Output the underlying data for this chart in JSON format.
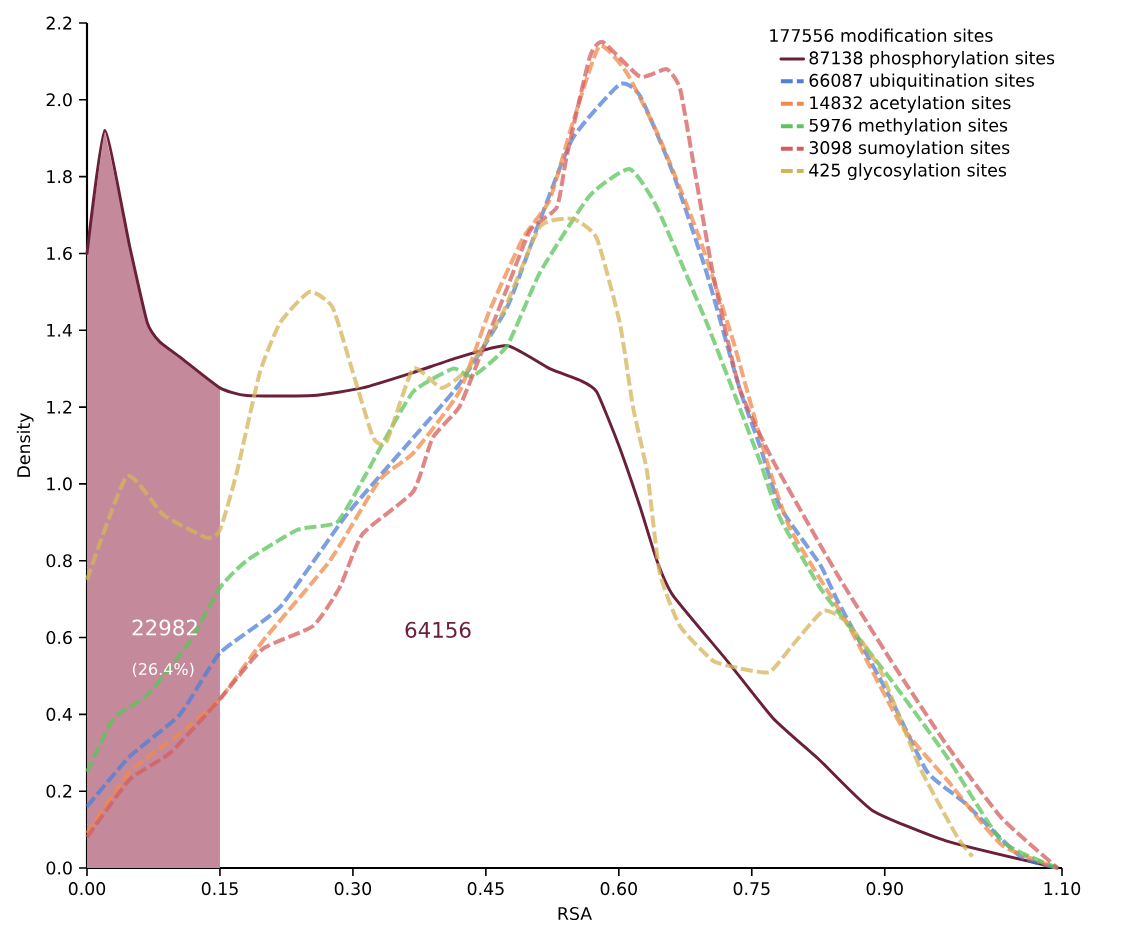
{
  "chart_data": {
    "type": "line",
    "xlabel": "RSA",
    "ylabel": "Density",
    "legend_title": "177556 modification sites",
    "legend": "top right",
    "xlim": [
      0,
      1.1
    ],
    "ylim": [
      0,
      2.2
    ],
    "xticks": [
      {
        "value": 0,
        "label": "0.00"
      },
      {
        "value": 0.15,
        "label": "0.15"
      },
      {
        "value": 0.3,
        "label": "0.30"
      },
      {
        "value": 0.45,
        "label": "0.45"
      },
      {
        "value": 0.6,
        "label": "0.60"
      },
      {
        "value": 0.75,
        "label": "0.75"
      },
      {
        "value": 0.9,
        "label": "0.90"
      },
      {
        "value": 1.1,
        "label": "1.10"
      }
    ],
    "yticks": [
      {
        "value": 0,
        "label": "0.0"
      },
      {
        "value": 0.2,
        "label": "0.2"
      },
      {
        "value": 0.4,
        "label": "0.4"
      },
      {
        "value": 0.6,
        "label": "0.6"
      },
      {
        "value": 0.8,
        "label": "0.8"
      },
      {
        "value": 1.0,
        "label": "1.0"
      },
      {
        "value": 1.2,
        "label": "1.2"
      },
      {
        "value": 1.4,
        "label": "1.4"
      },
      {
        "value": 1.6,
        "label": "1.6"
      },
      {
        "value": 1.8,
        "label": "1.8"
      },
      {
        "value": 2.0,
        "label": "2.0"
      },
      {
        "value": 2.2,
        "label": "2.2"
      }
    ],
    "series": [
      {
        "type": "area",
        "color": "#c48a9c",
        "x": [
          0,
          0.02,
          0.048,
          0.068,
          0.082,
          0.105,
          0.15
        ],
        "values": [
          1.6,
          1.92,
          1.62,
          1.42,
          1.37,
          1.33,
          1.25
        ]
      },
      {
        "name": "87138 phosphorylation sites",
        "color": "#6b2039",
        "line_style": "solid",
        "x": [
          0,
          0.02,
          0.048,
          0.068,
          0.082,
          0.105,
          0.15,
          0.18,
          0.255,
          0.311,
          0.368,
          0.42,
          0.474,
          0.522,
          0.556,
          0.575,
          0.6,
          0.624,
          0.643,
          0.661,
          0.722,
          0.774,
          0.827,
          0.886,
          0.97,
          1.095
        ],
        "values": [
          1.6,
          1.92,
          1.62,
          1.42,
          1.37,
          1.33,
          1.25,
          1.23,
          1.23,
          1.25,
          1.29,
          1.33,
          1.36,
          1.3,
          1.27,
          1.24,
          1.1,
          0.94,
          0.8,
          0.71,
          0.54,
          0.39,
          0.28,
          0.15,
          0.07,
          0
        ]
      },
      {
        "name": "66087 ubiquitination sites",
        "color": "#4f7fd6",
        "line_style": "dashed",
        "x": [
          0,
          0.048,
          0.105,
          0.15,
          0.218,
          0.293,
          0.368,
          0.42,
          0.474,
          0.51,
          0.548,
          0.601,
          0.624,
          0.661,
          0.699,
          0.736,
          0.759,
          0.782,
          0.827,
          0.848,
          0.907,
          0.948,
          0.99,
          1.053,
          1.095
        ],
        "values": [
          0.16,
          0.29,
          0.4,
          0.56,
          0.68,
          0.92,
          1.12,
          1.26,
          1.46,
          1.68,
          1.9,
          2.04,
          2.01,
          1.81,
          1.55,
          1.25,
          1.1,
          0.94,
          0.79,
          0.69,
          0.44,
          0.25,
          0.17,
          0.03,
          0
        ]
      },
      {
        "name": "14832 acetylation sites",
        "color": "#f08a4b",
        "line_style": "dashed",
        "x": [
          0,
          0.048,
          0.105,
          0.15,
          0.198,
          0.274,
          0.33,
          0.368,
          0.42,
          0.454,
          0.492,
          0.522,
          0.548,
          0.578,
          0.609,
          0.646,
          0.691,
          0.728,
          0.767,
          0.794,
          0.857,
          0.919,
          0.97,
          1.032,
          1.095
        ],
        "values": [
          0.09,
          0.25,
          0.35,
          0.44,
          0.59,
          0.8,
          1.01,
          1.08,
          1.24,
          1.45,
          1.64,
          1.74,
          1.94,
          2.14,
          2.07,
          1.9,
          1.64,
          1.38,
          1.06,
          0.88,
          0.64,
          0.37,
          0.23,
          0.06,
          0
        ]
      },
      {
        "name": "5976 methylation sites",
        "color": "#5bc45b",
        "line_style": "dashed",
        "x": [
          0,
          0.03,
          0.068,
          0.116,
          0.15,
          0.18,
          0.237,
          0.282,
          0.311,
          0.33,
          0.368,
          0.413,
          0.435,
          0.474,
          0.511,
          0.567,
          0.612,
          0.643,
          0.699,
          0.736,
          0.759,
          0.782,
          0.827,
          0.853,
          0.907,
          0.97,
          1.032,
          1.095
        ],
        "values": [
          0.25,
          0.39,
          0.45,
          0.59,
          0.73,
          0.8,
          0.88,
          0.9,
          1.01,
          1.09,
          1.24,
          1.3,
          1.28,
          1.36,
          1.55,
          1.75,
          1.82,
          1.72,
          1.42,
          1.2,
          1.06,
          0.91,
          0.73,
          0.65,
          0.49,
          0.29,
          0.07,
          0
        ]
      },
      {
        "name": "3098 sumoylation sites",
        "color": "#d45d5d",
        "line_style": "dashed",
        "x": [
          0,
          0.048,
          0.094,
          0.15,
          0.198,
          0.255,
          0.285,
          0.311,
          0.368,
          0.39,
          0.42,
          0.443,
          0.474,
          0.5,
          0.53,
          0.541,
          0.567,
          0.582,
          0.624,
          0.654,
          0.669,
          0.683,
          0.706,
          0.736,
          0.774,
          0.845,
          0.907,
          0.97,
          1.032,
          1.095
        ],
        "values": [
          0.08,
          0.23,
          0.3,
          0.44,
          0.57,
          0.63,
          0.73,
          0.87,
          0.98,
          1.12,
          1.2,
          1.33,
          1.51,
          1.66,
          1.72,
          1.85,
          2.11,
          2.15,
          2.06,
          2.08,
          2.03,
          1.85,
          1.55,
          1.25,
          1.06,
          0.77,
          0.54,
          0.32,
          0.13,
          0
        ]
      },
      {
        "name": "425 glycosylation sites",
        "color": "#d4b45a",
        "line_style": "dashed",
        "x": [
          0,
          0.045,
          0.086,
          0.135,
          0.15,
          0.169,
          0.195,
          0.218,
          0.251,
          0.277,
          0.3,
          0.323,
          0.338,
          0.368,
          0.4,
          0.43,
          0.47,
          0.511,
          0.548,
          0.575,
          0.601,
          0.616,
          0.632,
          0.646,
          0.669,
          0.706,
          0.736,
          0.77,
          0.796,
          0.831,
          0.857,
          0.894,
          0.94,
          0.982,
          0.999
        ],
        "values": [
          0.75,
          1.02,
          0.92,
          0.86,
          0.88,
          1.03,
          1.29,
          1.42,
          1.5,
          1.46,
          1.29,
          1.12,
          1.11,
          1.3,
          1.25,
          1.3,
          1.45,
          1.67,
          1.69,
          1.64,
          1.42,
          1.2,
          1.03,
          0.77,
          0.63,
          0.54,
          0.52,
          0.51,
          0.58,
          0.67,
          0.64,
          0.52,
          0.26,
          0.08,
          0.03
        ]
      }
    ],
    "annotations": [
      "22982",
      "(26.4%)",
      "64156"
    ]
  }
}
